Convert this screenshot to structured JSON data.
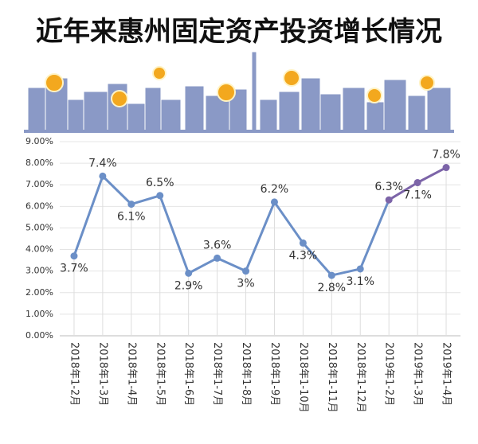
{
  "chart_data": {
    "type": "line",
    "title": "近年来惠州固定资产投资增长情况",
    "categories": [
      "2018年1-2月",
      "2018年1-3月",
      "2018年1-4月",
      "2018年1-5月",
      "2018年1-6月",
      "2018年1-7月",
      "2018年1-8月",
      "2018年1-9月",
      "2018年1-10月",
      "2018年1-11月",
      "2018年1-12月",
      "2019年1-2月",
      "2019年1-3月",
      "2019年1-4月"
    ],
    "values": [
      3.7,
      7.4,
      6.1,
      6.5,
      2.9,
      3.6,
      3.0,
      6.2,
      4.3,
      2.8,
      3.1,
      6.3,
      7.1,
      7.8
    ],
    "value_labels": [
      "3.7%",
      "7.4%",
      "6.1%",
      "6.5%",
      "2.9%",
      "3.6%",
      "3%",
      "6.2%",
      "4.3%",
      "2.8%",
      "3.1%",
      "6.3%",
      "7.1%",
      "7.8%"
    ],
    "colors": [
      "#6b8fc7",
      "#6b8fc7",
      "#6b8fc7",
      "#6b8fc7",
      "#6b8fc7",
      "#6b8fc7",
      "#6b8fc7",
      "#6b8fc7",
      "#6b8fc7",
      "#6b8fc7",
      "#6b8fc7",
      "#7c64a8",
      "#7c64a8",
      "#7c64a8"
    ],
    "ylim": [
      0,
      9
    ],
    "yticks": [
      {
        "value": 0,
        "label": "0.00%"
      },
      {
        "value": 1,
        "label": "1.00%"
      },
      {
        "value": 2,
        "label": "2.00%"
      },
      {
        "value": 3,
        "label": "3.00%"
      },
      {
        "value": 4,
        "label": "4.00%"
      },
      {
        "value": 5,
        "label": "5.00%"
      },
      {
        "value": 6,
        "label": "6.00%"
      },
      {
        "value": 7,
        "label": "7.00%"
      },
      {
        "value": 8,
        "label": "8.00%"
      },
      {
        "value": 9,
        "label": "9.00%"
      }
    ],
    "grid": true
  }
}
